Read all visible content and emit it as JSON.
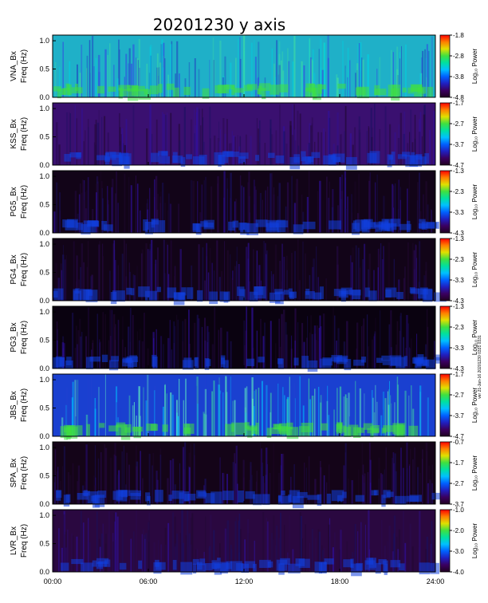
{
  "chart_data": {
    "type": "heatmap",
    "title": "20201230  y axis",
    "x_ticks": [
      "00:00",
      "06:00",
      "12:00",
      "18:00",
      "24:00"
    ],
    "x_range_hours": [
      0,
      24
    ],
    "y_range_hz": [
      0,
      1.1
    ],
    "y_ticks": [
      "1.0",
      "0.5",
      "0.0"
    ],
    "colorbar_title": "Log₁₀ Power",
    "colormap": [
      "#200020",
      "#3a0060",
      "#2020c0",
      "#0060ff",
      "#00c0ff",
      "#00e0a0",
      "#40e040",
      "#e0e000",
      "#ff8000",
      "#ff0000"
    ],
    "panels": [
      {
        "ylabel": "VNA_Bx",
        "ylabel2": "Freq (Hz)",
        "cbar_ticks": [
          "-1.8",
          "-2.8",
          "-3.8",
          "-4.8"
        ],
        "cbar_range": [
          -4.8,
          -1.8
        ],
        "background": "#1fb0c8"
      },
      {
        "ylabel": "KSS_Bx",
        "ylabel2": "Freq (Hz)",
        "cbar_ticks": [
          "-1.7",
          "-2.7",
          "-3.7",
          "-4.7"
        ],
        "cbar_range": [
          -4.7,
          -1.7
        ],
        "background": "#3a1070"
      },
      {
        "ylabel": "PG5_Bx",
        "ylabel2": "Freq (Hz)",
        "cbar_ticks": [
          "-1.3",
          "-2.3",
          "-3.3",
          "-4.3"
        ],
        "cbar_range": [
          -4.3,
          -1.3
        ],
        "background": "#120418"
      },
      {
        "ylabel": "PG4_Bx",
        "ylabel2": "Freq (Hz)",
        "cbar_ticks": [
          "-1.3",
          "-2.3",
          "-3.3",
          "-4.3"
        ],
        "cbar_range": [
          -4.3,
          -1.3
        ],
        "background": "#120418"
      },
      {
        "ylabel": "PG3_Bx",
        "ylabel2": "Freq (Hz)",
        "cbar_ticks": [
          "-1.3",
          "-2.3",
          "-3.3",
          "-4.3"
        ],
        "cbar_range": [
          -4.3,
          -1.3
        ],
        "background": "#0a0210"
      },
      {
        "ylabel": "JBS_Bx",
        "ylabel2": "Freq (Hz)",
        "cbar_ticks": [
          "-1.7",
          "-2.7",
          "-3.7",
          "-4.7"
        ],
        "cbar_range": [
          -4.7,
          -1.7
        ],
        "background": "#1a40d0"
      },
      {
        "ylabel": "SPA_Bx",
        "ylabel2": "Freq (Hz)",
        "cbar_ticks": [
          "-0.7",
          "-1.7",
          "-2.7",
          "-3.7"
        ],
        "cbar_range": [
          -3.7,
          -0.7
        ],
        "background": "#140418"
      },
      {
        "ylabel": "LVR_Bx",
        "ylabel2": "Freq (Hz)",
        "cbar_ticks": [
          "-1.0",
          "-2.0",
          "-3.0",
          "-4.0"
        ],
        "cbar_range": [
          -4.0,
          -1.0
        ],
        "background": "#2a0840"
      }
    ],
    "side_stamp": "ver 21-Jan-16 20201230 0331 0331"
  }
}
